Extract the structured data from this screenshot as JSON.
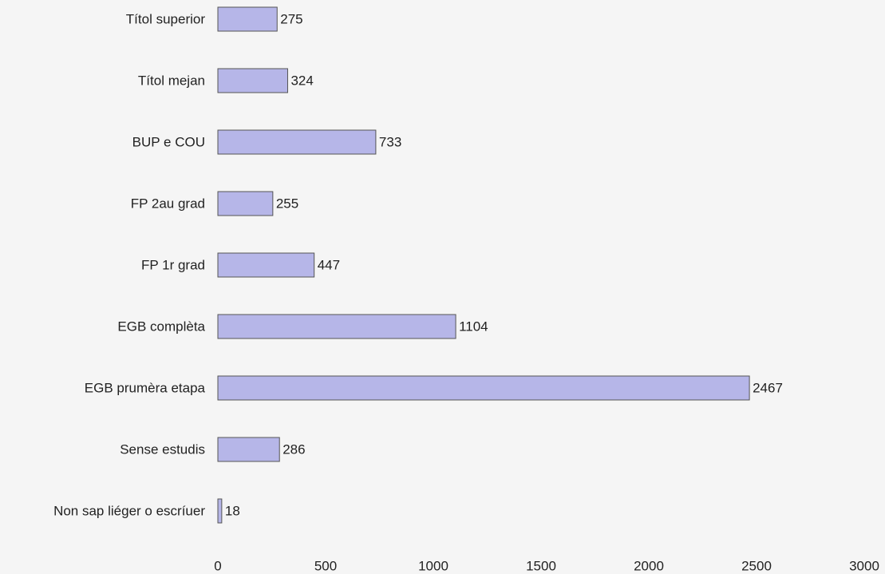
{
  "chart_data": {
    "type": "barh",
    "categories": [
      "Títol superior",
      "Títol mejan",
      "BUP e COU",
      "FP 2au grad",
      "FP 1r grad",
      "EGB complèta",
      "EGB prumèra etapa",
      "Sense estudis",
      "Non sap liéger o escríuer"
    ],
    "values": [
      275,
      324,
      733,
      255,
      447,
      1104,
      2467,
      286,
      18
    ],
    "color": "#b6b6e8",
    "xlim": [
      0,
      3000
    ],
    "xticks": [
      0,
      500,
      1000,
      1500,
      2000,
      2500,
      3000
    ],
    "grid": false
  }
}
